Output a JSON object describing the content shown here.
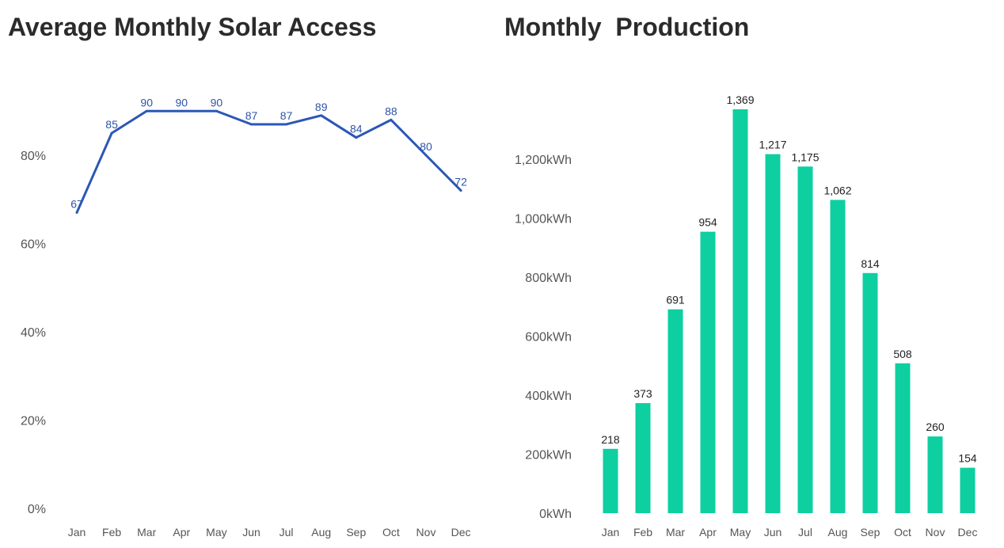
{
  "colors": {
    "line": "#2b57b5",
    "bar": "#0dcfa0",
    "title": "#2b2b2b",
    "axis_text": "#555555"
  },
  "chart_data": [
    {
      "type": "line",
      "title": "Average Monthly Solar Access",
      "categories": [
        "Jan",
        "Feb",
        "Mar",
        "Apr",
        "May",
        "Jun",
        "Jul",
        "Aug",
        "Sep",
        "Oct",
        "Nov",
        "Dec"
      ],
      "values": [
        67,
        85,
        90,
        90,
        90,
        87,
        87,
        89,
        84,
        88,
        80,
        72
      ],
      "data_labels": [
        "67",
        "85",
        "90",
        "90",
        "90",
        "87",
        "87",
        "89",
        "84",
        "88",
        "80",
        "72"
      ],
      "yticks": [
        "0%",
        "20%",
        "40%",
        "60%",
        "80%"
      ],
      "ytick_values": [
        0,
        20,
        40,
        60,
        80
      ],
      "ylim": [
        0,
        100
      ],
      "grid": false,
      "legend": "none"
    },
    {
      "type": "bar",
      "title": "Monthly  Production",
      "categories": [
        "Jan",
        "Feb",
        "Mar",
        "Apr",
        "May",
        "Jun",
        "Jul",
        "Aug",
        "Sep",
        "Oct",
        "Nov",
        "Dec"
      ],
      "values": [
        218,
        373,
        691,
        954,
        1369,
        1217,
        1175,
        1062,
        814,
        508,
        260,
        154
      ],
      "data_labels": [
        "218",
        "373",
        "691",
        "954",
        "1,369",
        "1,217",
        "1,175",
        "1,062",
        "814",
        "508",
        "260",
        "154"
      ],
      "yticks": [
        "0kWh",
        "200kWh",
        "400kWh",
        "600kWh",
        "800kWh",
        "1,000kWh",
        "1,200kWh"
      ],
      "ytick_values": [
        0,
        200,
        400,
        600,
        800,
        1000,
        1200
      ],
      "ylim": [
        0,
        1400
      ],
      "grid": false,
      "legend": "none"
    }
  ]
}
